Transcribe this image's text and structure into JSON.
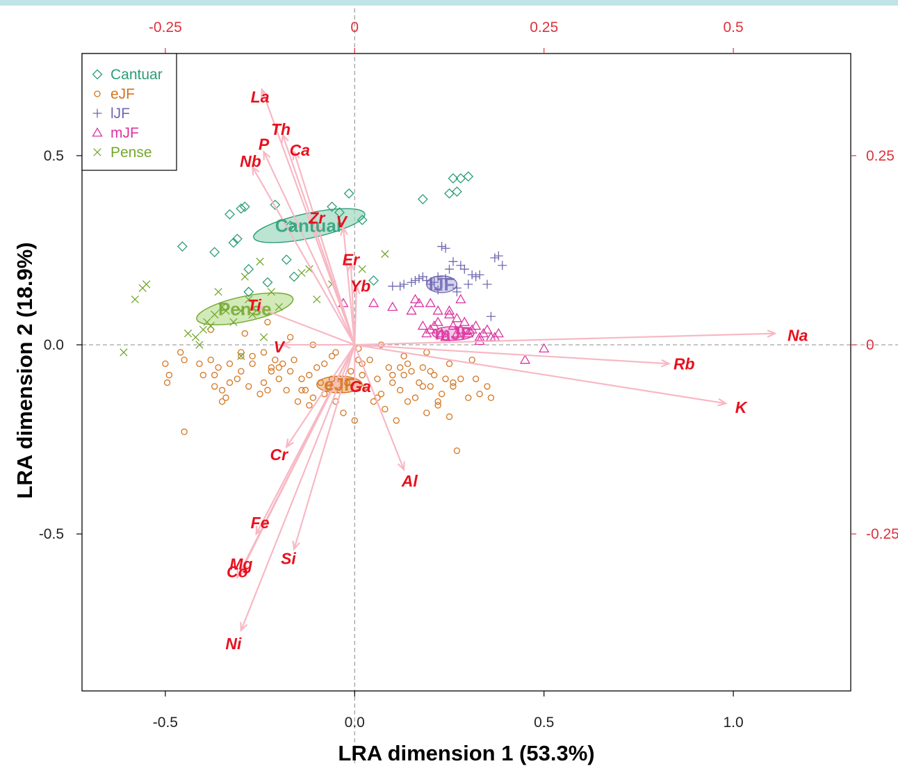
{
  "chart_data": {
    "type": "scatter",
    "subtype": "biplot",
    "xlabel": "LRA dimension 1 (53.3%)",
    "ylabel": "LRA dimension 2 (18.9%)",
    "xlim": [
      -0.72,
      1.31
    ],
    "ylim": [
      -0.915,
      0.77
    ],
    "x_ticks": [
      -0.5,
      0.0,
      0.5,
      1.0
    ],
    "x_tick_labels": [
      "-0.5",
      "0.0",
      "0.5",
      "1.0"
    ],
    "y_ticks": [
      -0.5,
      0.0,
      0.5
    ],
    "y_tick_labels": [
      "-0.5",
      "0.0",
      "0.5"
    ],
    "top_ticks": [
      -0.25,
      0,
      0.25,
      0.5
    ],
    "top_tick_labels": [
      "-0.25",
      "0",
      "0.25",
      "0.5"
    ],
    "right_ticks": [
      0.25,
      0,
      -0.25
    ],
    "right_tick_labels": [
      "0.25",
      "0",
      "-0.25"
    ],
    "secondary_axis_scale": 2,
    "reference_lines": {
      "x": 0,
      "y": 0,
      "style": "dashed"
    },
    "legend": {
      "position": "top-left",
      "entries": [
        {
          "label": "Cantuar",
          "symbol": "diamond",
          "color": "#2a9d77"
        },
        {
          "label": "eJF",
          "symbol": "circle",
          "color": "#d2751f"
        },
        {
          "label": "lJF",
          "symbol": "plus",
          "color": "#6f68b0"
        },
        {
          "label": "mJF",
          "symbol": "triangle",
          "color": "#d9349f"
        },
        {
          "label": "Pense",
          "symbol": "cross",
          "color": "#73a82d"
        }
      ]
    },
    "group_ellipses": [
      {
        "label": "Cantuar",
        "center": [
          -0.12,
          0.315
        ],
        "rx": 0.15,
        "ry": 0.033,
        "angle_deg": -12,
        "color": "#2a9d77",
        "fill": "#9ed9c0"
      },
      {
        "label": "Pense",
        "center": [
          -0.29,
          0.095
        ],
        "rx": 0.13,
        "ry": 0.033,
        "angle_deg": -12,
        "color": "#73a82d",
        "fill": "#bfe09a"
      },
      {
        "label": "lJF",
        "center": [
          0.23,
          0.16
        ],
        "rx": 0.04,
        "ry": 0.022,
        "angle_deg": 0,
        "color": "#6f68b0",
        "fill": "#c4c1e6"
      },
      {
        "label": "mJF",
        "center": [
          0.26,
          0.03
        ],
        "rx": 0.055,
        "ry": 0.018,
        "angle_deg": 0,
        "color": "#d9349f",
        "fill": "#f3b5dd"
      },
      {
        "label": "eJF",
        "center": [
          -0.04,
          -0.105
        ],
        "rx": 0.06,
        "ry": 0.022,
        "angle_deg": 0,
        "color": "#d2751f",
        "fill": "#f0b27a"
      }
    ],
    "variables": [
      {
        "name": "La",
        "end": [
          -0.245,
          0.675
        ],
        "label_pos": [
          -0.25,
          0.655
        ]
      },
      {
        "name": "Th",
        "end": [
          -0.19,
          0.555
        ],
        "label_pos": [
          -0.195,
          0.57
        ]
      },
      {
        "name": "P",
        "end": [
          -0.24,
          0.51
        ],
        "label_pos": [
          -0.24,
          0.53
        ]
      },
      {
        "name": "Ca",
        "end": [
          -0.16,
          0.51
        ],
        "label_pos": [
          -0.145,
          0.515
        ]
      },
      {
        "name": "Nb",
        "end": [
          -0.27,
          0.47
        ],
        "label_pos": [
          -0.275,
          0.485
        ]
      },
      {
        "name": "Zr",
        "end": [
          -0.1,
          0.32
        ],
        "label_pos": [
          -0.1,
          0.335
        ]
      },
      {
        "name": "V",
        "end": [
          -0.03,
          0.31
        ],
        "label_pos": [
          -0.035,
          0.325
        ]
      },
      {
        "name": "Er",
        "end": [
          -0.01,
          0.215
        ],
        "label_pos": [
          -0.01,
          0.225
        ]
      },
      {
        "name": "Yb",
        "end": [
          0.005,
          0.155
        ],
        "label_pos": [
          0.015,
          0.155
        ]
      },
      {
        "name": "Ti",
        "end": [
          -0.26,
          0.1
        ],
        "label_pos": [
          -0.265,
          0.105
        ]
      },
      {
        "name": "V",
        "end": [
          -0.19,
          0.0
        ],
        "label_pos": [
          -0.2,
          -0.005
        ]
      },
      {
        "name": "Ga",
        "end": [
          0.0,
          -0.12
        ],
        "label_pos": [
          0.015,
          -0.11
        ]
      },
      {
        "name": "Na",
        "end": [
          1.11,
          0.03
        ],
        "label_pos": [
          1.17,
          0.025
        ]
      },
      {
        "name": "Rb",
        "end": [
          0.83,
          -0.05
        ],
        "label_pos": [
          0.87,
          -0.05
        ]
      },
      {
        "name": "K",
        "end": [
          0.98,
          -0.155
        ],
        "label_pos": [
          1.02,
          -0.165
        ]
      },
      {
        "name": "Al",
        "end": [
          0.13,
          -0.33
        ],
        "label_pos": [
          0.145,
          -0.36
        ]
      },
      {
        "name": "Cr",
        "end": [
          -0.18,
          -0.27
        ],
        "label_pos": [
          -0.2,
          -0.29
        ]
      },
      {
        "name": "Fe",
        "end": [
          -0.26,
          -0.5
        ],
        "label_pos": [
          -0.25,
          -0.47
        ]
      },
      {
        "name": "Si",
        "end": [
          -0.16,
          -0.54
        ],
        "label_pos": [
          -0.175,
          -0.565
        ]
      },
      {
        "name": "Mg",
        "end": [
          -0.3,
          -0.6
        ],
        "label_pos": [
          -0.3,
          -0.58
        ]
      },
      {
        "name": "Co",
        "end": [
          -0.31,
          -0.615
        ],
        "label_pos": [
          -0.31,
          -0.6
        ]
      },
      {
        "name": "Ni",
        "end": [
          -0.3,
          -0.755
        ],
        "label_pos": [
          -0.32,
          -0.79
        ]
      }
    ],
    "series": [
      {
        "name": "Cantuar",
        "symbol": "diamond",
        "color": "#2a9d77",
        "x": [
          -0.455,
          -0.37,
          -0.31,
          -0.3,
          -0.29,
          -0.33,
          -0.32,
          -0.28,
          -0.23,
          -0.21,
          -0.17,
          -0.16,
          -0.06,
          -0.04,
          -0.015,
          0.02,
          0.05,
          0.18,
          0.25,
          0.27,
          0.26,
          0.28,
          0.3,
          -0.28,
          -0.18
        ],
        "y": [
          0.26,
          0.245,
          0.28,
          0.36,
          0.365,
          0.345,
          0.27,
          0.2,
          0.165,
          0.37,
          0.315,
          0.18,
          0.365,
          0.35,
          0.4,
          0.33,
          0.17,
          0.385,
          0.4,
          0.405,
          0.44,
          0.44,
          0.445,
          0.14,
          0.225
        ]
      },
      {
        "name": "eJF",
        "symbol": "circle",
        "color": "#d2751f",
        "x": [
          -0.5,
          -0.49,
          -0.495,
          -0.46,
          -0.45,
          -0.41,
          -0.4,
          -0.38,
          -0.37,
          -0.36,
          -0.34,
          -0.35,
          -0.33,
          -0.31,
          -0.3,
          -0.3,
          -0.28,
          -0.27,
          -0.25,
          -0.24,
          -0.23,
          -0.22,
          -0.21,
          -0.2,
          -0.19,
          -0.18,
          -0.17,
          -0.15,
          -0.14,
          -0.13,
          -0.12,
          -0.11,
          -0.1,
          -0.09,
          -0.08,
          -0.07,
          -0.06,
          -0.05,
          -0.04,
          -0.03,
          -0.02,
          -0.01,
          0.0,
          0.01,
          0.02,
          0.03,
          0.05,
          0.06,
          0.07,
          0.08,
          0.09,
          0.1,
          0.11,
          0.12,
          0.13,
          0.14,
          0.15,
          0.16,
          0.17,
          0.18,
          0.19,
          0.2,
          0.21,
          0.22,
          0.23,
          0.24,
          0.25,
          0.26,
          0.27,
          0.3,
          0.32,
          0.33,
          0.35,
          0.36,
          -0.45,
          -0.37,
          -0.35,
          -0.3,
          -0.24,
          -0.2,
          -0.16,
          -0.12,
          -0.08,
          -0.04,
          0.02,
          0.06,
          0.1,
          0.14,
          0.18,
          0.22,
          0.26,
          -0.33,
          -0.27,
          -0.22,
          -0.14,
          -0.06,
          0.04,
          0.12,
          0.2,
          0.28,
          -0.38,
          -0.29,
          -0.23,
          -0.17,
          -0.11,
          -0.05,
          0.01,
          0.07,
          0.13,
          0.19,
          0.25,
          0.31
        ],
        "y": [
          -0.05,
          -0.08,
          -0.1,
          -0.02,
          -0.23,
          -0.05,
          -0.08,
          -0.04,
          -0.11,
          -0.06,
          -0.14,
          -0.12,
          -0.1,
          -0.09,
          -0.07,
          -0.03,
          -0.11,
          -0.05,
          -0.13,
          -0.02,
          -0.12,
          -0.06,
          -0.04,
          -0.09,
          -0.05,
          -0.12,
          -0.07,
          -0.15,
          -0.09,
          -0.12,
          -0.08,
          -0.14,
          -0.06,
          -0.1,
          -0.13,
          -0.11,
          -0.09,
          -0.15,
          -0.12,
          -0.18,
          -0.1,
          -0.07,
          -0.2,
          -0.04,
          -0.08,
          -0.11,
          -0.15,
          -0.09,
          -0.13,
          -0.17,
          -0.06,
          -0.1,
          -0.2,
          -0.12,
          -0.08,
          -0.15,
          -0.07,
          -0.14,
          -0.1,
          -0.06,
          -0.18,
          -0.11,
          -0.08,
          -0.15,
          -0.13,
          -0.09,
          -0.19,
          -0.11,
          -0.28,
          -0.14,
          -0.09,
          -0.13,
          -0.11,
          -0.14,
          -0.04,
          -0.08,
          -0.15,
          -0.02,
          -0.1,
          -0.06,
          -0.04,
          -0.16,
          -0.05,
          -0.09,
          -0.05,
          -0.14,
          -0.08,
          -0.05,
          -0.11,
          -0.16,
          -0.1,
          -0.05,
          -0.03,
          -0.07,
          -0.12,
          -0.03,
          -0.04,
          -0.06,
          -0.07,
          -0.09,
          0.04,
          0.03,
          0.06,
          0.02,
          0.0,
          -0.02,
          -0.01,
          0.0,
          -0.03,
          -0.02,
          -0.05,
          -0.04
        ]
      },
      {
        "name": "lJF",
        "symbol": "plus",
        "color": "#6f68b0",
        "x": [
          0.1,
          0.12,
          0.13,
          0.15,
          0.16,
          0.17,
          0.18,
          0.19,
          0.2,
          0.21,
          0.22,
          0.23,
          0.24,
          0.25,
          0.26,
          0.27,
          0.28,
          0.29,
          0.3,
          0.31,
          0.33,
          0.35,
          0.37,
          0.38,
          0.39,
          0.22,
          0.24,
          0.27,
          0.32,
          0.36
        ],
        "y": [
          0.155,
          0.155,
          0.16,
          0.165,
          0.17,
          0.175,
          0.18,
          0.17,
          0.16,
          0.165,
          0.18,
          0.26,
          0.255,
          0.2,
          0.22,
          0.15,
          0.21,
          0.2,
          0.16,
          0.185,
          0.185,
          0.16,
          0.23,
          0.235,
          0.21,
          0.145,
          0.175,
          0.14,
          0.18,
          0.075
        ]
      },
      {
        "name": "mJF",
        "symbol": "triangle",
        "color": "#d9349f",
        "x": [
          -0.03,
          0.05,
          0.1,
          0.15,
          0.17,
          0.18,
          0.19,
          0.2,
          0.21,
          0.22,
          0.23,
          0.24,
          0.25,
          0.26,
          0.27,
          0.28,
          0.29,
          0.3,
          0.31,
          0.32,
          0.33,
          0.34,
          0.35,
          0.36,
          0.37,
          0.38,
          0.2,
          0.22,
          0.25,
          0.28,
          0.45,
          0.5,
          0.16,
          0.27,
          0.33
        ],
        "y": [
          0.11,
          0.11,
          0.1,
          0.09,
          0.11,
          0.05,
          0.03,
          0.04,
          0.05,
          0.06,
          0.03,
          0.02,
          0.08,
          0.05,
          0.03,
          0.04,
          0.06,
          0.03,
          0.04,
          0.05,
          0.02,
          0.03,
          0.04,
          0.02,
          0.02,
          0.03,
          0.11,
          0.09,
          0.09,
          0.12,
          -0.04,
          -0.01,
          0.12,
          0.07,
          0.01
        ]
      },
      {
        "name": "Pense",
        "symbol": "cross",
        "color": "#73a82d",
        "x": [
          -0.61,
          -0.58,
          -0.56,
          -0.55,
          -0.44,
          -0.42,
          -0.41,
          -0.4,
          -0.39,
          -0.38,
          -0.37,
          -0.36,
          -0.35,
          -0.34,
          -0.32,
          -0.3,
          -0.29,
          -0.28,
          -0.27,
          -0.25,
          -0.24,
          -0.22,
          -0.2,
          -0.14,
          -0.12,
          -0.1,
          -0.06,
          0.08,
          0.02,
          -0.3
        ],
        "y": [
          -0.02,
          0.12,
          0.15,
          0.16,
          0.03,
          0.02,
          0.0,
          0.04,
          0.06,
          0.05,
          0.08,
          0.14,
          0.1,
          0.09,
          0.06,
          -0.03,
          0.18,
          0.12,
          0.08,
          0.22,
          0.02,
          0.14,
          0.1,
          0.19,
          0.2,
          0.12,
          0.16,
          0.24,
          0.2,
          0.09
        ]
      }
    ]
  }
}
